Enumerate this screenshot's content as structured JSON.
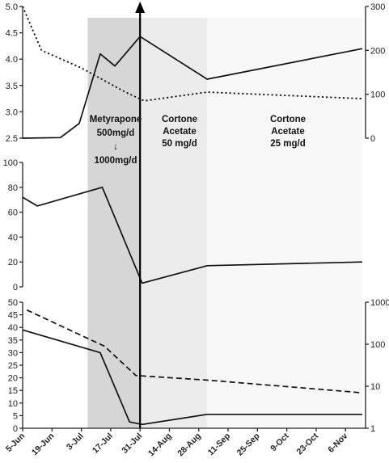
{
  "chart_data": [
    {
      "type": "line",
      "panel": "top",
      "left_axis": {
        "ylim": [
          2.5,
          5.0
        ],
        "ticks": [
          "2.5",
          "3.0",
          "3.5",
          "4.0",
          "4.5",
          "5.0"
        ]
      },
      "right_axis": {
        "ylim": [
          0,
          300
        ],
        "ticks": [
          "0",
          "100",
          "200",
          "300"
        ]
      },
      "series": [
        {
          "axis": "left",
          "style": "solid",
          "points": [
            [
              "5-Jun",
              2.5
            ],
            [
              "23-Jun",
              2.51
            ],
            [
              "2-Jul",
              2.78
            ],
            [
              "12-Jul",
              4.1
            ],
            [
              "19-Jul",
              3.87
            ],
            [
              "31-Jul",
              4.43
            ],
            [
              "1-Sep",
              3.62
            ],
            [
              "14-Nov",
              4.2
            ]
          ]
        },
        {
          "axis": "right",
          "style": "dotted",
          "points": [
            [
              "5-Jun",
              300
            ],
            [
              "14-Jun",
              200
            ],
            [
              "3-Jul",
              160
            ],
            [
              "24-Jul",
              105
            ],
            [
              "2-Aug",
              85
            ],
            [
              "1-Sep",
              105
            ],
            [
              "14-Nov",
              90
            ]
          ]
        }
      ]
    },
    {
      "type": "line",
      "panel": "middle",
      "left_axis": {
        "ylim": [
          0,
          100
        ],
        "ticks": [
          "0",
          "20",
          "40",
          "60",
          "80",
          "100"
        ]
      },
      "series": [
        {
          "axis": "left",
          "style": "solid",
          "points": [
            [
              "5-Jun",
              72
            ],
            [
              "12-Jun",
              65
            ],
            [
              "13-Jul",
              80
            ],
            [
              "1-Aug",
              3
            ],
            [
              "1-Sep",
              17
            ],
            [
              "14-Nov",
              20
            ]
          ]
        }
      ]
    },
    {
      "type": "line",
      "panel": "bottom",
      "left_axis": {
        "ylim": [
          0,
          50
        ],
        "ticks": [
          "0",
          "5",
          "10",
          "15",
          "20",
          "25",
          "30",
          "35",
          "40",
          "45",
          "50"
        ]
      },
      "right_axis": {
        "scale": "log",
        "ylim": [
          1,
          1000
        ],
        "ticks": [
          "1",
          "10",
          "100",
          "1000"
        ]
      },
      "series": [
        {
          "axis": "left",
          "style": "solid",
          "points": [
            [
              "5-Jun",
              39
            ],
            [
              "12-Jul",
              30
            ],
            [
              "26-Jul",
              2.5
            ],
            [
              "1-Aug",
              1.5
            ],
            [
              "1-Sep",
              5.5
            ],
            [
              "14-Nov",
              5.5
            ]
          ]
        },
        {
          "axis": "right",
          "style": "dashed",
          "points": [
            [
              "7-Jun",
              650
            ],
            [
              "14-Jul",
              90
            ],
            [
              "29-Jul",
              18
            ],
            [
              "1-Sep",
              14
            ],
            [
              "14-Nov",
              7
            ]
          ]
        }
      ]
    }
  ],
  "x_axis": {
    "start": "5-Jun",
    "end": "14-Nov",
    "ticks": [
      "5-Jun",
      "19-Jun",
      "3-Jul",
      "17-Jul",
      "31-Jul",
      "14-Aug",
      "28-Aug",
      "11-Sep",
      "25-Sep",
      "9-Oct",
      "23-Oct",
      "6-Nov"
    ]
  },
  "phases": [
    {
      "start": "6-Jul",
      "end": "31-Jul",
      "color": "#d6d6d6",
      "lines": [
        "Metyrapone",
        "500mg/d",
        "↓",
        "1000mg/d"
      ]
    },
    {
      "start": "31-Jul",
      "end": "1-Sep",
      "color": "#ececec",
      "lines": [
        "Cortone",
        "Acetate",
        "50 mg/d"
      ]
    },
    {
      "start": "1-Sep",
      "end": "14-Nov",
      "color": "#f8f8f8",
      "lines": [
        "Cortone",
        "Acetate",
        "25 mg/d"
      ]
    }
  ],
  "event_marker": {
    "date": "31-Jul"
  }
}
